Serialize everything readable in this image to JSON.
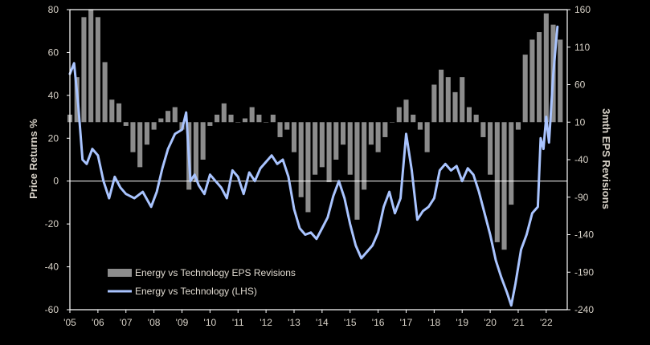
{
  "chart_data": {
    "type": "bar+line",
    "title": "",
    "ylabel_left": "Price Returns %",
    "ylabel_right": "3mth EPS Revisions",
    "ylim_left": [
      -60,
      80
    ],
    "ylim_right": [
      -240,
      160
    ],
    "yticks_left": [
      80,
      60,
      40,
      20,
      0,
      -20,
      -40,
      -60
    ],
    "yticks_right": [
      160,
      110,
      60,
      10,
      -40,
      -90,
      -140,
      -190,
      -240
    ],
    "x_range": [
      2005.0,
      2022.75
    ],
    "x_ticks": [
      {
        "year": 2005,
        "label": "'05"
      },
      {
        "year": 2006,
        "label": "'06"
      },
      {
        "year": 2007,
        "label": "'07"
      },
      {
        "year": 2008,
        "label": "'08"
      },
      {
        "year": 2009,
        "label": "'09"
      },
      {
        "year": 2010,
        "label": "'10"
      },
      {
        "year": 2011,
        "label": "'11"
      },
      {
        "year": 2012,
        "label": "'12"
      },
      {
        "year": 2013,
        "label": "'13"
      },
      {
        "year": 2014,
        "label": "'14"
      },
      {
        "year": 2015,
        "label": "'15"
      },
      {
        "year": 2016,
        "label": "'16"
      },
      {
        "year": 2017,
        "label": "'17"
      },
      {
        "year": 2018,
        "label": "'18"
      },
      {
        "year": 2019,
        "label": "'19"
      },
      {
        "year": 2020,
        "label": "'20"
      },
      {
        "year": 2021,
        "label": "'21"
      },
      {
        "year": 2022,
        "label": "'22"
      }
    ],
    "grid": false,
    "legend_position": "bottom-left",
    "colors": {
      "bars": "#8c8c8c",
      "line": "#a9c4ff",
      "axis": "#ffffff",
      "text": "#d8d2c8"
    },
    "series": [
      {
        "name": "Energy vs Technology  EPS  Revisions",
        "type": "bar",
        "axis": "right",
        "points": [
          [
            2005.0,
            20
          ],
          [
            2005.25,
            70
          ],
          [
            2005.5,
            150
          ],
          [
            2005.75,
            160
          ],
          [
            2006.0,
            150
          ],
          [
            2006.25,
            90
          ],
          [
            2006.5,
            40
          ],
          [
            2006.75,
            35
          ],
          [
            2007.0,
            5
          ],
          [
            2007.25,
            -30
          ],
          [
            2007.5,
            -50
          ],
          [
            2007.75,
            -20
          ],
          [
            2008.0,
            0
          ],
          [
            2008.25,
            15
          ],
          [
            2008.5,
            25
          ],
          [
            2008.75,
            30
          ],
          [
            2009.0,
            0
          ],
          [
            2009.25,
            -80
          ],
          [
            2009.5,
            -70
          ],
          [
            2009.75,
            -40
          ],
          [
            2010.0,
            5
          ],
          [
            2010.25,
            20
          ],
          [
            2010.5,
            35
          ],
          [
            2010.75,
            20
          ],
          [
            2011.0,
            10
          ],
          [
            2011.25,
            15
          ],
          [
            2011.5,
            30
          ],
          [
            2011.75,
            20
          ],
          [
            2012.0,
            10
          ],
          [
            2012.25,
            20
          ],
          [
            2012.5,
            -10
          ],
          [
            2012.75,
            0
          ],
          [
            2013.0,
            -30
          ],
          [
            2013.25,
            -90
          ],
          [
            2013.5,
            -110
          ],
          [
            2013.75,
            -60
          ],
          [
            2014.0,
            -50
          ],
          [
            2014.25,
            -70
          ],
          [
            2014.5,
            -40
          ],
          [
            2014.75,
            -20
          ],
          [
            2015.0,
            -60
          ],
          [
            2015.25,
            -120
          ],
          [
            2015.5,
            -80
          ],
          [
            2015.75,
            -20
          ],
          [
            2016.0,
            -30
          ],
          [
            2016.25,
            -10
          ],
          [
            2016.5,
            10
          ],
          [
            2016.75,
            30
          ],
          [
            2017.0,
            40
          ],
          [
            2017.25,
            20
          ],
          [
            2017.5,
            0
          ],
          [
            2017.75,
            -30
          ],
          [
            2018.0,
            60
          ],
          [
            2018.25,
            80
          ],
          [
            2018.5,
            70
          ],
          [
            2018.75,
            50
          ],
          [
            2019.0,
            70
          ],
          [
            2019.25,
            30
          ],
          [
            2019.5,
            20
          ],
          [
            2019.75,
            -10
          ],
          [
            2020.0,
            -60
          ],
          [
            2020.25,
            -150
          ],
          [
            2020.5,
            -160
          ],
          [
            2020.75,
            -100
          ],
          [
            2021.0,
            0
          ],
          [
            2021.25,
            100
          ],
          [
            2021.5,
            120
          ],
          [
            2021.75,
            130
          ],
          [
            2022.0,
            155
          ],
          [
            2022.25,
            140
          ],
          [
            2022.5,
            120
          ]
        ]
      },
      {
        "name": "Energy vs Technology  (LHS)",
        "type": "line",
        "axis": "left",
        "points": [
          [
            2005.0,
            50
          ],
          [
            2005.15,
            55
          ],
          [
            2005.3,
            35
          ],
          [
            2005.45,
            10
          ],
          [
            2005.6,
            8
          ],
          [
            2005.8,
            15
          ],
          [
            2006.0,
            12
          ],
          [
            2006.2,
            0
          ],
          [
            2006.4,
            -8
          ],
          [
            2006.6,
            2
          ],
          [
            2006.8,
            -3
          ],
          [
            2007.0,
            -6
          ],
          [
            2007.3,
            -8
          ],
          [
            2007.6,
            -5
          ],
          [
            2007.9,
            -12
          ],
          [
            2008.1,
            -5
          ],
          [
            2008.3,
            6
          ],
          [
            2008.5,
            15
          ],
          [
            2008.75,
            22
          ],
          [
            2009.0,
            24
          ],
          [
            2009.15,
            32
          ],
          [
            2009.3,
            0
          ],
          [
            2009.45,
            3
          ],
          [
            2009.6,
            -2
          ],
          [
            2009.8,
            -6
          ],
          [
            2010.0,
            3
          ],
          [
            2010.2,
            0
          ],
          [
            2010.4,
            -3
          ],
          [
            2010.6,
            -8
          ],
          [
            2010.8,
            5
          ],
          [
            2011.0,
            2
          ],
          [
            2011.2,
            -6
          ],
          [
            2011.4,
            4
          ],
          [
            2011.6,
            0
          ],
          [
            2011.8,
            6
          ],
          [
            2012.0,
            9
          ],
          [
            2012.2,
            12
          ],
          [
            2012.4,
            8
          ],
          [
            2012.6,
            10
          ],
          [
            2012.8,
            2
          ],
          [
            2013.0,
            -13
          ],
          [
            2013.2,
            -22
          ],
          [
            2013.4,
            -25
          ],
          [
            2013.6,
            -24
          ],
          [
            2013.8,
            -27
          ],
          [
            2014.0,
            -22
          ],
          [
            2014.2,
            -17
          ],
          [
            2014.4,
            -7
          ],
          [
            2014.6,
            0
          ],
          [
            2014.8,
            -8
          ],
          [
            2015.0,
            -20
          ],
          [
            2015.2,
            -30
          ],
          [
            2015.4,
            -36
          ],
          [
            2015.6,
            -33
          ],
          [
            2015.8,
            -30
          ],
          [
            2016.0,
            -24
          ],
          [
            2016.2,
            -12
          ],
          [
            2016.4,
            -5
          ],
          [
            2016.6,
            -15
          ],
          [
            2016.8,
            -8
          ],
          [
            2017.0,
            22
          ],
          [
            2017.2,
            5
          ],
          [
            2017.4,
            -18
          ],
          [
            2017.6,
            -14
          ],
          [
            2017.8,
            -12
          ],
          [
            2018.0,
            -8
          ],
          [
            2018.2,
            5
          ],
          [
            2018.4,
            8
          ],
          [
            2018.6,
            5
          ],
          [
            2018.8,
            7
          ],
          [
            2019.0,
            0
          ],
          [
            2019.2,
            6
          ],
          [
            2019.4,
            3
          ],
          [
            2019.6,
            -5
          ],
          [
            2019.8,
            -15
          ],
          [
            2020.0,
            -25
          ],
          [
            2020.2,
            -37
          ],
          [
            2020.4,
            -45
          ],
          [
            2020.6,
            -52
          ],
          [
            2020.75,
            -58
          ],
          [
            2020.9,
            -48
          ],
          [
            2021.1,
            -32
          ],
          [
            2021.3,
            -25
          ],
          [
            2021.5,
            -15
          ],
          [
            2021.7,
            -12
          ],
          [
            2021.8,
            20
          ],
          [
            2021.9,
            15
          ],
          [
            2022.0,
            30
          ],
          [
            2022.1,
            18
          ],
          [
            2022.25,
            50
          ],
          [
            2022.4,
            72
          ]
        ]
      }
    ]
  }
}
